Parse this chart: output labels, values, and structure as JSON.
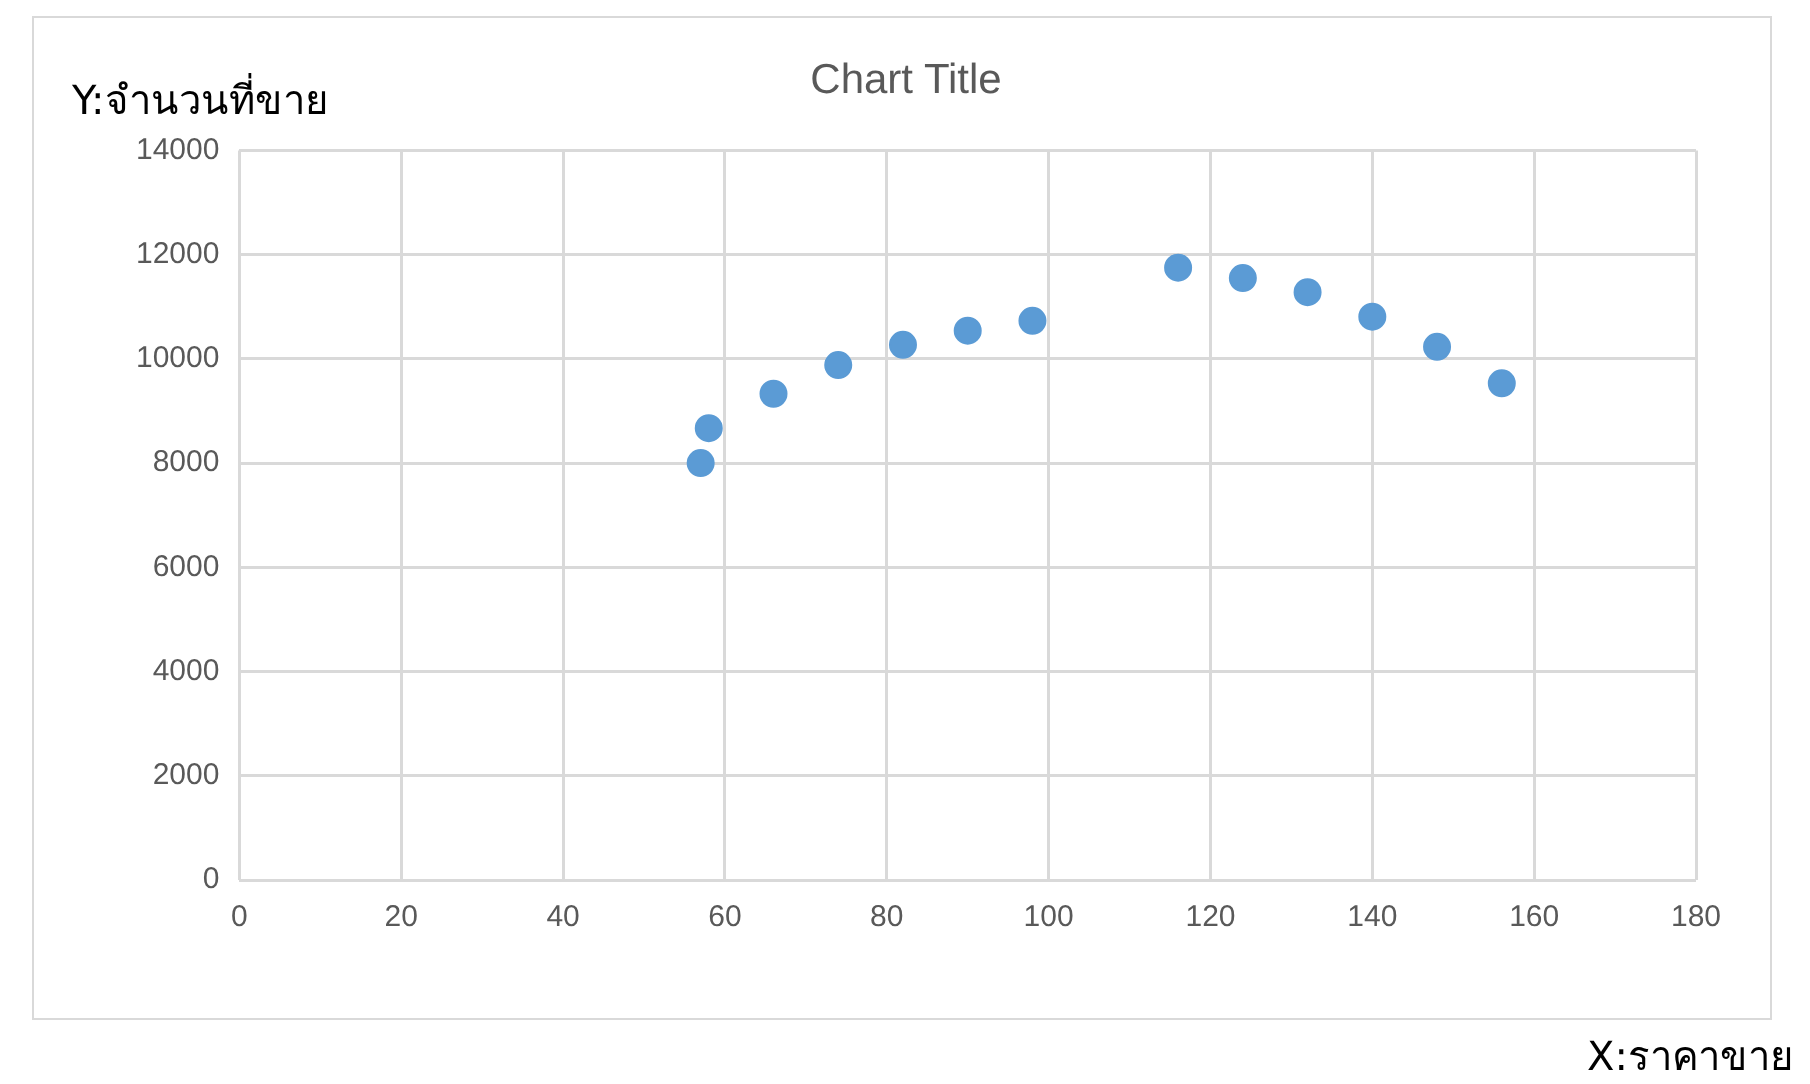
{
  "chart_data": {
    "type": "scatter",
    "title": "Chart Title",
    "xlabel": "X:ราคาขาย",
    "ylabel": "Y:จำนวนที่ขาย",
    "x": [
      57,
      58,
      66,
      74,
      82,
      90,
      98,
      116,
      124,
      132,
      140,
      148,
      156
    ],
    "series": [
      {
        "color": "#5b9bd5",
        "values": [
          8000,
          8670,
          9330,
          9880,
          10270,
          10540,
          10730,
          11750,
          11550,
          11280,
          10810,
          10230,
          9530
        ]
      }
    ],
    "xlim": [
      0,
      180
    ],
    "xticks": [
      0,
      20,
      40,
      60,
      80,
      100,
      120,
      140,
      160,
      180
    ],
    "ylim": [
      0,
      14000
    ],
    "yticks": [
      0,
      2000,
      4000,
      6000,
      8000,
      10000,
      12000,
      14000
    ],
    "grid": true,
    "marker": "circle",
    "legend": false
  }
}
